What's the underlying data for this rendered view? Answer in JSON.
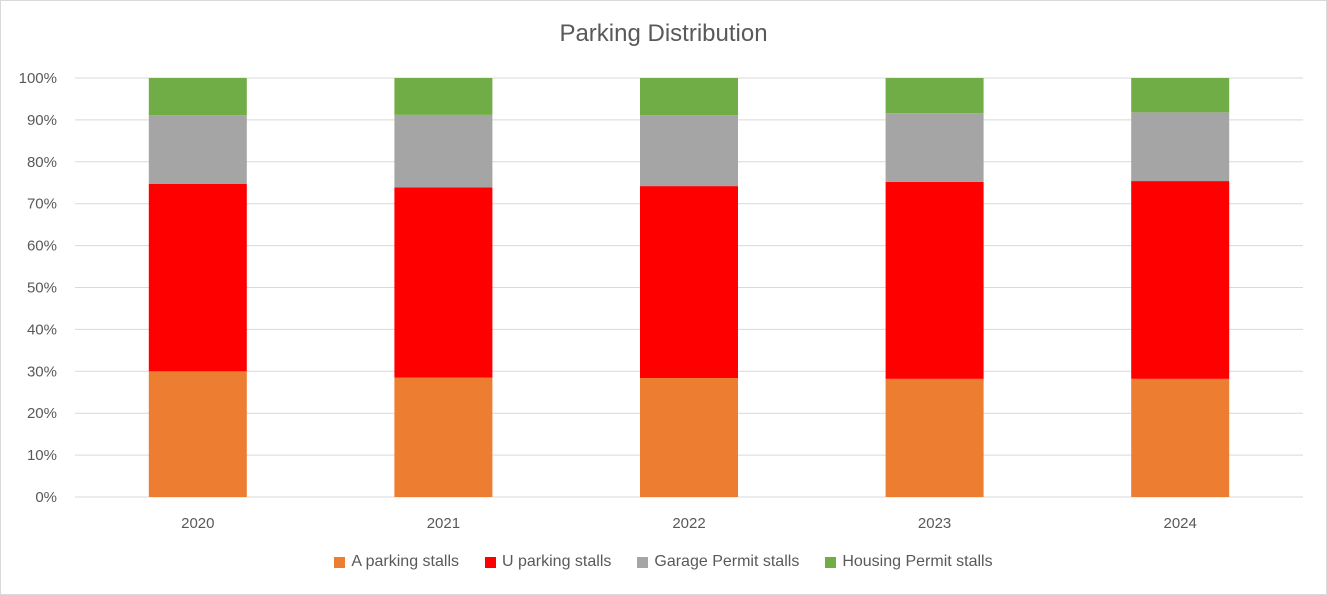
{
  "chart_data": {
    "type": "bar",
    "stacked": "percent",
    "title": "Parking Distribution",
    "categories": [
      "2020",
      "2021",
      "2022",
      "2023",
      "2024"
    ],
    "ylim": [
      0,
      100
    ],
    "yticks": [
      "0%",
      "10%",
      "20%",
      "30%",
      "40%",
      "50%",
      "60%",
      "70%",
      "80%",
      "90%",
      "100%"
    ],
    "grid": true,
    "legend_position": "bottom",
    "series": [
      {
        "name": "A parking stalls",
        "color": "#ED7D31",
        "values": [
          30.0,
          28.5,
          28.4,
          28.2,
          28.2
        ]
      },
      {
        "name": "U parking stalls",
        "color": "#FF0000",
        "values": [
          44.7,
          45.4,
          45.8,
          47.0,
          47.2
        ]
      },
      {
        "name": "Garage Permit stalls",
        "color": "#A5A5A5",
        "values": [
          16.4,
          17.3,
          16.9,
          16.4,
          16.4
        ]
      },
      {
        "name": "Housing Permit stalls",
        "color": "#70AD47",
        "values": [
          8.9,
          8.8,
          8.9,
          8.4,
          8.2
        ]
      }
    ]
  }
}
